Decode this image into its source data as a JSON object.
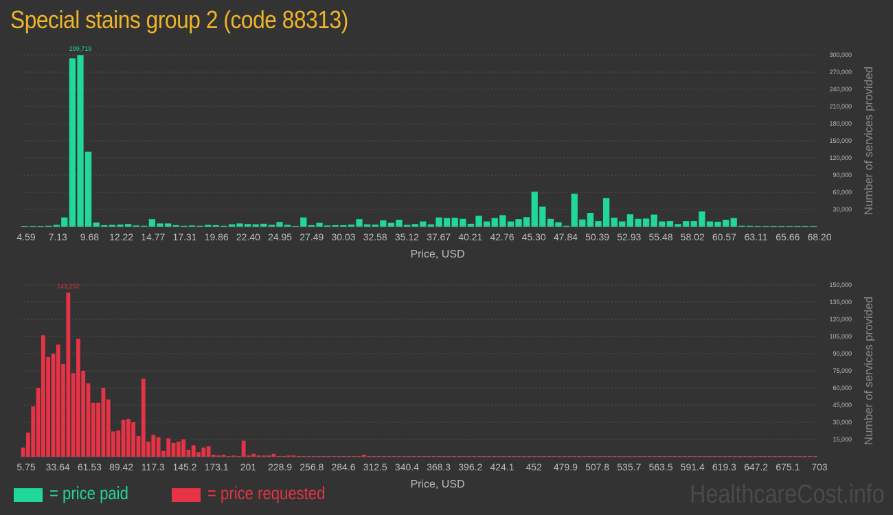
{
  "title": "Special stains group 2 (code 88313)",
  "colors": {
    "paid": "#20d898",
    "requested": "#e63346",
    "title": "#f0b428",
    "axis_text": "#bbbbbb",
    "grid": "#4f4f4f"
  },
  "legend": {
    "paid_label": "= price paid",
    "requested_label": "= price requested"
  },
  "watermark": "HealthcareCost.info",
  "chart_data": [
    {
      "type": "bar",
      "xlabel": "Price, USD",
      "ylabel": "Number of services provided",
      "ylim": [
        0,
        300000
      ],
      "y_ticks": [
        "30,000",
        "60,000",
        "90,000",
        "120,000",
        "150,000",
        "180,000",
        "210,000",
        "240,000",
        "270,000",
        "300,000"
      ],
      "x_tick_labels": [
        "4.59",
        "7.13",
        "9.68",
        "12.22",
        "14.77",
        "17.31",
        "19.86",
        "22.40",
        "24.95",
        "27.49",
        "30.03",
        "32.58",
        "35.12",
        "37.67",
        "40.21",
        "42.76",
        "45.30",
        "47.84",
        "50.39",
        "52.93",
        "55.48",
        "58.02",
        "60.57",
        "63.11",
        "65.66",
        "68.20"
      ],
      "grid": true,
      "peak_label": "299,719",
      "peak_index": 7,
      "series": [
        {
          "color": "#20d898",
          "values": [
            1200,
            500,
            800,
            1500,
            3000,
            16000,
            294000,
            299719,
            131000,
            7000,
            2500,
            3000,
            3500,
            4500,
            2000,
            1500,
            13000,
            5500,
            5500,
            2500,
            1500,
            2000,
            1500,
            3000,
            2500,
            1500,
            4000,
            5500,
            4500,
            4000,
            5000,
            3000,
            8000,
            3000,
            500,
            16000,
            2500,
            6500,
            2000,
            2500,
            2500,
            3500,
            13000,
            4000,
            3500,
            11000,
            6500,
            12000,
            3000,
            4500,
            9000,
            4000,
            16000,
            15000,
            15500,
            13500,
            5000,
            19000,
            9000,
            15000,
            20000,
            9000,
            13000,
            16500,
            61000,
            35000,
            13500,
            7500,
            1500,
            57500,
            12500,
            24000,
            9500,
            50000,
            15500,
            9000,
            21500,
            13500,
            14000,
            21000,
            9000,
            9500,
            4500,
            9500,
            9500,
            26500,
            9000,
            8500,
            12000,
            15000,
            1500,
            1500,
            1000,
            300,
            1000,
            500,
            300,
            500,
            300,
            1000
          ]
        }
      ]
    },
    {
      "type": "bar",
      "xlabel": "Price, USD",
      "ylabel": "Number of services provided",
      "ylim": [
        0,
        150000
      ],
      "y_ticks": [
        "15,000",
        "30,000",
        "45,000",
        "60,000",
        "75,000",
        "90,000",
        "105,000",
        "120,000",
        "135,000",
        "150,000"
      ],
      "x_tick_labels": [
        "5.75",
        "33.64",
        "61.53",
        "89.42",
        "117.3",
        "145.2",
        "173.1",
        "201",
        "228.9",
        "256.8",
        "284.6",
        "312.5",
        "340.4",
        "368.3",
        "396.2",
        "424.1",
        "452",
        "479.9",
        "507.8",
        "535.7",
        "563.5",
        "591.4",
        "619.3",
        "647.2",
        "675.1",
        "703"
      ],
      "grid": true,
      "peak_label": "143,252",
      "peak_index": 9,
      "series": [
        {
          "color": "#e63346",
          "values": [
            8000,
            21000,
            44000,
            60000,
            106000,
            87000,
            90000,
            98000,
            81000,
            143252,
            73000,
            103000,
            75000,
            64000,
            47000,
            47000,
            60000,
            50000,
            22000,
            23000,
            32000,
            33000,
            30000,
            18000,
            68000,
            13000,
            19000,
            17000,
            5000,
            16000,
            12000,
            13000,
            15000,
            6000,
            10000,
            4000,
            8000,
            9000,
            1500,
            1000,
            1500,
            500,
            1000,
            500,
            14000,
            1000,
            2500,
            1000,
            1000,
            1000,
            2500,
            500,
            300,
            1000,
            1000,
            300,
            300,
            200,
            300,
            500,
            200,
            300,
            500,
            300,
            300,
            200,
            300,
            200,
            1500,
            200,
            300,
            200,
            300,
            200,
            200,
            200,
            200,
            300,
            300,
            200,
            200,
            200,
            300,
            200,
            200,
            200,
            200,
            300,
            200,
            200,
            200,
            200,
            300,
            200,
            200,
            300,
            200,
            200,
            200,
            200,
            200,
            300,
            200,
            200,
            200,
            200,
            200,
            200,
            200,
            200,
            200,
            200,
            200,
            200,
            200,
            200,
            200,
            300,
            200,
            200,
            200,
            200,
            200,
            200,
            200,
            200,
            200,
            200,
            200,
            200,
            200,
            200,
            200,
            200,
            200,
            200,
            200,
            200,
            200,
            200,
            200,
            200,
            300,
            200,
            200,
            200,
            200,
            200,
            200,
            200,
            200,
            200,
            200,
            200,
            200,
            200,
            200,
            200,
            500
          ]
        }
      ]
    }
  ]
}
